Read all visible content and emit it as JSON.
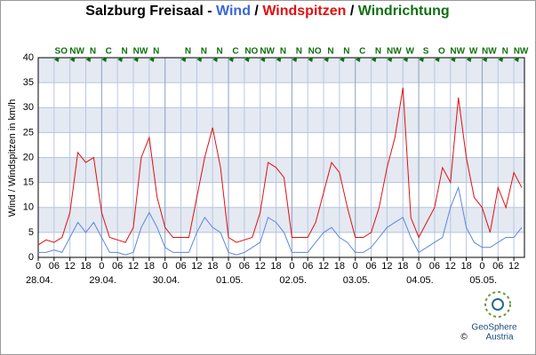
{
  "chart_data": {
    "type": "line",
    "title_parts": [
      {
        "text": "Salzburg Freisaal - ",
        "color": "#000000"
      },
      {
        "text": "Wind",
        "color": "#3a66d8"
      },
      {
        "text": " / ",
        "color": "#000000"
      },
      {
        "text": "Windspitzen",
        "color": "#e01010"
      },
      {
        "text": " / ",
        "color": "#000000"
      },
      {
        "text": "Windrichtung",
        "color": "#107010"
      }
    ],
    "y_label": "Wind / Windspitzen in km/h",
    "x": [
      0,
      3,
      6,
      9,
      12,
      15,
      18,
      21,
      24,
      27,
      30,
      33,
      36,
      39,
      42,
      45,
      48,
      51,
      54,
      57,
      60,
      63,
      66,
      69,
      72,
      75,
      78,
      81,
      84,
      87,
      90,
      93,
      96,
      99,
      102,
      105,
      108,
      111,
      114,
      117,
      120,
      123,
      126,
      129,
      132,
      135,
      138,
      141,
      144,
      147,
      150,
      153,
      156,
      159,
      162,
      165,
      168,
      171,
      174,
      177,
      180,
      183
    ],
    "series": [
      {
        "color": "#e01010",
        "values": [
          2.5,
          3.5,
          3,
          4,
          9,
          21,
          19,
          20,
          9,
          4,
          3.5,
          3,
          6,
          20,
          24,
          12,
          6,
          4,
          4,
          4,
          12,
          20,
          26,
          18,
          4,
          3,
          3.5,
          4,
          9,
          19,
          18,
          16,
          4,
          4,
          4,
          7,
          13,
          19,
          17,
          10,
          4,
          4,
          5,
          10,
          18,
          24,
          34,
          8,
          4,
          7,
          10,
          18,
          15,
          32,
          20,
          12,
          10,
          5,
          14,
          10,
          17,
          14
        ]
      },
      {
        "color": "#5b86e0",
        "values": [
          1,
          1,
          1.5,
          1,
          4,
          7,
          5,
          7,
          4,
          1,
          1,
          0.5,
          1,
          6,
          9,
          6,
          2,
          1,
          1,
          1,
          5,
          8,
          6,
          5,
          1,
          0.5,
          1,
          2,
          3,
          8,
          7,
          5,
          1,
          1,
          1,
          3,
          5,
          6,
          4,
          3,
          1,
          1,
          2,
          4,
          6,
          7,
          8,
          4,
          1,
          2,
          3,
          4,
          10,
          14,
          6,
          3,
          2,
          2,
          3,
          4,
          4,
          6
        ]
      }
    ],
    "xlim": [
      0,
      184
    ],
    "xticks": [
      0,
      {
        "value": 6,
        "label": "06"
      },
      {
        "value": 12,
        "label": "12"
      },
      {
        "value": 18,
        "label": "18"
      },
      {
        "value": 24,
        "label": "0"
      },
      {
        "value": 30,
        "label": "06"
      },
      {
        "value": 36,
        "label": "12"
      },
      {
        "value": 42,
        "label": "18"
      },
      {
        "value": 48,
        "label": "0"
      },
      {
        "value": 54,
        "label": "06"
      },
      {
        "value": 60,
        "label": "12"
      },
      {
        "value": 66,
        "label": "18"
      },
      {
        "value": 72,
        "label": "0"
      },
      {
        "value": 78,
        "label": "06"
      },
      {
        "value": 84,
        "label": "12"
      },
      {
        "value": 90,
        "label": "18"
      },
      {
        "value": 96,
        "label": "0"
      },
      {
        "value": 102,
        "label": "06"
      },
      {
        "value": 108,
        "label": "12"
      },
      {
        "value": 114,
        "label": "18"
      },
      {
        "value": 120,
        "label": "0"
      },
      {
        "value": 126,
        "label": "06"
      },
      {
        "value": 132,
        "label": "12"
      },
      {
        "value": 138,
        "label": "18"
      },
      {
        "value": 144,
        "label": "0"
      },
      {
        "value": 150,
        "label": "06"
      },
      {
        "value": 156,
        "label": "12"
      },
      {
        "value": 162,
        "label": "18"
      },
      {
        "value": 168,
        "label": "0"
      },
      {
        "value": 174,
        "label": "06"
      },
      {
        "value": 180,
        "label": "12"
      }
    ],
    "date_labels": [
      {
        "value": 0,
        "label": "28.04."
      },
      {
        "value": 24,
        "label": "29.04."
      },
      {
        "value": 48,
        "label": "30.04."
      },
      {
        "value": 72,
        "label": "01.05."
      },
      {
        "value": 96,
        "label": "02.05."
      },
      {
        "value": 120,
        "label": "03.05."
      },
      {
        "value": 144,
        "label": "04.05."
      },
      {
        "value": 168,
        "label": "05.05."
      }
    ],
    "ylim": [
      0,
      40
    ],
    "yticks": [
      0,
      5,
      10,
      15,
      20,
      25,
      30,
      35,
      40
    ],
    "grid": true,
    "wind_direction": {
      "color": "#107010",
      "x": [
        8,
        14,
        20,
        26,
        32,
        38,
        44,
        56,
        62,
        68,
        74,
        80,
        86,
        92,
        98,
        104,
        110,
        116,
        122,
        128,
        134,
        140,
        146,
        152,
        158,
        164,
        170,
        176,
        182
      ],
      "labels": [
        "SO",
        "NW",
        "N",
        "C",
        "N",
        "NW",
        "N",
        "N",
        "N",
        "N",
        "C",
        "NO",
        "NW",
        "N",
        "N",
        "NO",
        "N",
        "N",
        "C",
        "N",
        "NW",
        "W",
        "S",
        "O",
        "NW",
        "W",
        "NW",
        "N",
        "NW"
      ]
    },
    "logo": {
      "name": "GeoSphere",
      "sub": "Austria",
      "copyright": "©"
    }
  }
}
